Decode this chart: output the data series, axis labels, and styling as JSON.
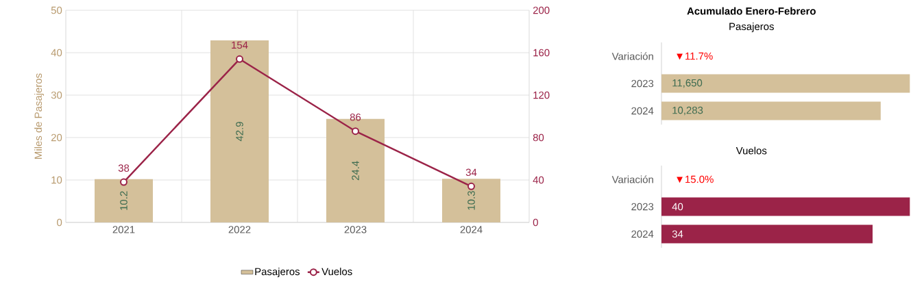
{
  "chart_data": [
    {
      "type": "bar",
      "categories": [
        "2021",
        "2022",
        "2023",
        "2024"
      ],
      "ylabel": "Miles de Pasajeros",
      "ylim": [
        0,
        50
      ],
      "yticks": [
        0,
        10,
        20,
        30,
        40,
        50
      ],
      "y2lim": [
        0,
        200
      ],
      "y2ticks": [
        0,
        40,
        80,
        120,
        160,
        200
      ],
      "grid": true,
      "legend": "bottom",
      "series": [
        {
          "name": "Pasajeros",
          "type": "bar",
          "color": "#d4c09a",
          "values": [
            10.2,
            42.9,
            24.4,
            10.3
          ],
          "value_labels": [
            "10.2",
            "42.9",
            "24.4",
            "10.3"
          ]
        },
        {
          "name": "Vuelos",
          "type": "line",
          "axis": "y2",
          "color": "#9b2348",
          "marker": "circle",
          "values": [
            38,
            154,
            86,
            34
          ],
          "value_labels": [
            "38",
            "154",
            "86",
            "34"
          ]
        }
      ]
    },
    {
      "type": "bar",
      "orientation": "horizontal",
      "title": "Acumulado Enero-Febrero",
      "subtitle": "Pasajeros",
      "categories": [
        "Variación",
        "2023",
        "2024"
      ],
      "values": [
        null,
        11650,
        10283
      ],
      "color": "#d4c09a",
      "value_labels": [
        null,
        "11,650",
        "10,283"
      ],
      "annotations": [
        "▼11.7%"
      ]
    },
    {
      "type": "bar",
      "orientation": "horizontal",
      "title": "Vuelos",
      "categories": [
        "Variación",
        "2023",
        "2024"
      ],
      "values": [
        null,
        40,
        34
      ],
      "color": "#9b2348",
      "value_labels": [
        null,
        "40",
        "34"
      ],
      "annotations": [
        "▼15.0%"
      ]
    }
  ]
}
